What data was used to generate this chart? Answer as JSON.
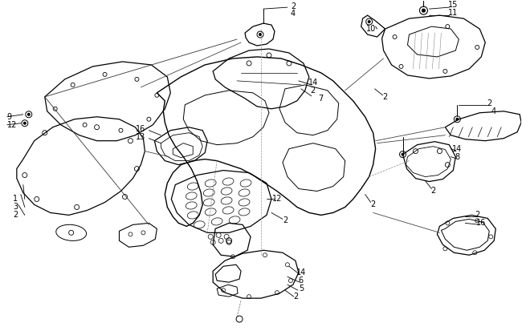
{
  "bg_color": "#ffffff",
  "line_color": "#000000",
  "fig_width": 6.5,
  "fig_height": 4.18,
  "dpi": 100
}
